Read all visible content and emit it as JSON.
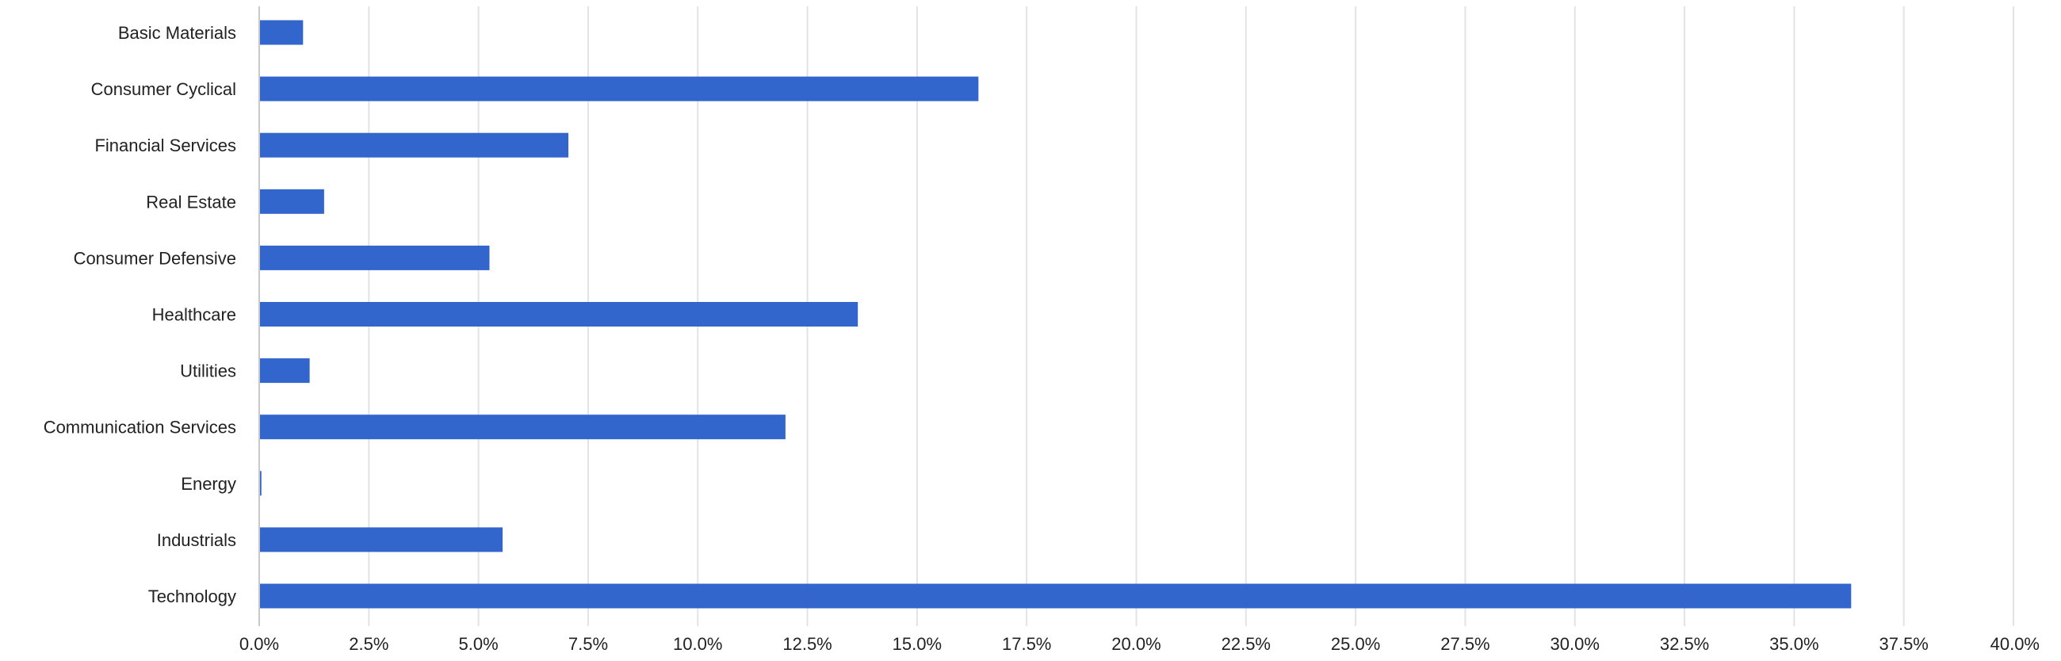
{
  "chart_data": {
    "type": "bar",
    "orientation": "horizontal",
    "title": "",
    "xlabel": "",
    "ylabel": "",
    "categories": [
      "Basic Materials",
      "Consumer Cyclical",
      "Financial Services",
      "Real Estate",
      "Consumer Defensive",
      "Healthcare",
      "Utilities",
      "Communication Services",
      "Energy",
      "Industrials",
      "Technology"
    ],
    "values": [
      1.0,
      16.4,
      7.05,
      1.48,
      5.25,
      13.65,
      1.15,
      12.0,
      0.05,
      5.55,
      36.3
    ],
    "value_unit": "%",
    "xlim": [
      0,
      40
    ],
    "x_ticks": [
      0,
      2.5,
      5,
      7.5,
      10,
      12.5,
      15,
      17.5,
      20,
      22.5,
      25,
      27.5,
      30,
      32.5,
      35,
      37.5,
      40
    ],
    "x_tick_labels": [
      "0.0%",
      "2.5%",
      "5.0%",
      "7.5%",
      "10.0%",
      "12.5%",
      "15.0%",
      "17.5%",
      "20.0%",
      "22.5%",
      "25.0%",
      "27.5%",
      "30.0%",
      "32.5%",
      "35.0%",
      "37.5%",
      "40.0%"
    ],
    "grid": "vertical",
    "legend": "none",
    "bar_color": "#3366cc"
  }
}
